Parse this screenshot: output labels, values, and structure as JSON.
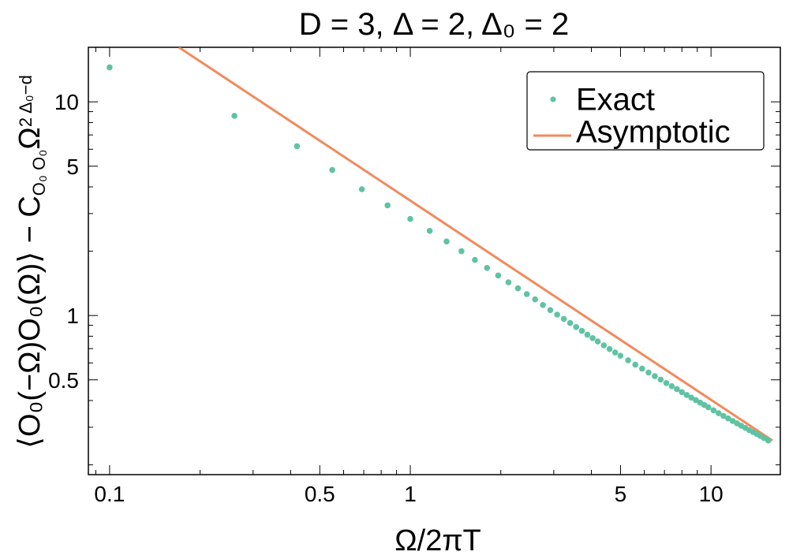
{
  "chart_data": {
    "type": "scatter",
    "title": "D = 3, Δ = 2, Δ₀ = 2",
    "xlabel": "Ω/2πT",
    "ylabel": "⟨O₀(−Ω)O₀(Ω)⟩ − C",
    "ylabel_sub": "O₀ O₀",
    "ylabel_tail": "Ω",
    "ylabel_sup": "2 Δ₀−d",
    "xscale": "log",
    "yscale": "log",
    "xlim": [
      0.085,
      17
    ],
    "ylim": [
      0.18,
      18
    ],
    "x_major_ticks": [
      {
        "value": 0.1,
        "label": "0.1"
      },
      {
        "value": 0.5,
        "label": "0.5"
      },
      {
        "value": 1,
        "label": "1"
      },
      {
        "value": 5,
        "label": "5"
      },
      {
        "value": 10,
        "label": "10"
      }
    ],
    "y_major_ticks": [
      {
        "value": 0.5,
        "label": "0.5"
      },
      {
        "value": 1,
        "label": "1"
      },
      {
        "value": 5,
        "label": "5"
      },
      {
        "value": 10,
        "label": "10"
      }
    ],
    "legend_position": "top-right",
    "colors": {
      "exact": "#5fc3a3",
      "asymptotic": "#f08a5d"
    },
    "series": [
      {
        "name": "Exact",
        "kind": "points",
        "x": [
          0.1,
          0.26,
          0.42,
          0.55,
          0.69,
          0.84,
          1.0,
          1.16,
          1.32,
          1.48,
          1.64,
          1.8,
          1.96,
          2.12,
          2.28,
          2.44,
          2.6,
          2.76,
          2.92,
          3.08,
          3.24,
          3.4,
          3.56,
          3.72,
          3.88,
          4.04,
          4.2,
          4.4,
          4.6,
          4.8,
          5.0,
          5.3,
          5.6,
          5.9,
          6.2,
          6.5,
          6.8,
          7.1,
          7.4,
          7.7,
          8.0,
          8.3,
          8.6,
          8.9,
          9.2,
          9.5,
          9.8,
          10.2,
          10.6,
          11.0,
          11.4,
          11.8,
          12.2,
          12.6,
          13.0,
          13.4,
          13.8,
          14.2,
          14.6,
          15.0,
          15.5
        ],
        "y": [
          14.5,
          8.6,
          6.2,
          4.8,
          3.9,
          3.28,
          2.83,
          2.49,
          2.22,
          2.0,
          1.82,
          1.67,
          1.54,
          1.43,
          1.34,
          1.26,
          1.19,
          1.12,
          1.06,
          1.01,
          0.965,
          0.922,
          0.883,
          0.847,
          0.814,
          0.784,
          0.756,
          0.725,
          0.697,
          0.671,
          0.648,
          0.617,
          0.589,
          0.564,
          0.541,
          0.52,
          0.501,
          0.483,
          0.467,
          0.452,
          0.438,
          0.425,
          0.413,
          0.402,
          0.391,
          0.381,
          0.372,
          0.36,
          0.349,
          0.339,
          0.33,
          0.321,
          0.313,
          0.305,
          0.298,
          0.291,
          0.285,
          0.279,
          0.273,
          0.267,
          0.26
        ]
      },
      {
        "name": "Asymptotic",
        "kind": "line",
        "x": [
          0.17,
          16
        ],
        "y": [
          18.0,
          0.26
        ]
      }
    ]
  }
}
